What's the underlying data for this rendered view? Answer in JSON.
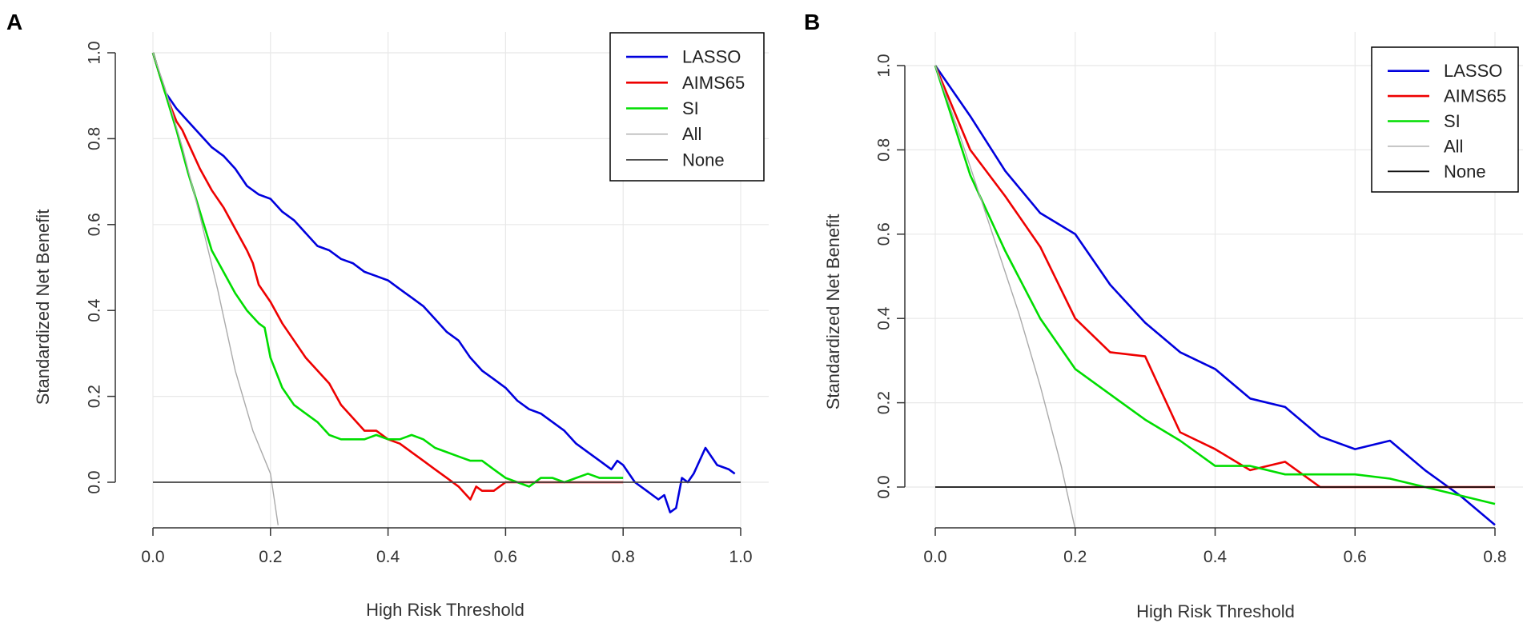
{
  "chart_data": [
    {
      "panel": "A",
      "type": "line",
      "title": "",
      "xlabel": "High Risk Threshold",
      "ylabel": "Standardized Net Benefit",
      "xlim": [
        0,
        1
      ],
      "ylim": [
        -0.1,
        1.0
      ],
      "xticks": [
        "0.0",
        "0.2",
        "0.4",
        "0.6",
        "0.8",
        "1.0"
      ],
      "yticks": [
        "0.0",
        "0.2",
        "0.4",
        "0.6",
        "0.8",
        "1.0"
      ],
      "grid": true,
      "legend_position": "top-right",
      "series": [
        {
          "name": "LASSO",
          "color": "#0000dd",
          "x": [
            0,
            0.02,
            0.04,
            0.06,
            0.08,
            0.1,
            0.12,
            0.14,
            0.16,
            0.18,
            0.2,
            0.22,
            0.24,
            0.26,
            0.28,
            0.3,
            0.32,
            0.34,
            0.36,
            0.38,
            0.4,
            0.42,
            0.44,
            0.46,
            0.48,
            0.5,
            0.52,
            0.54,
            0.56,
            0.58,
            0.6,
            0.62,
            0.64,
            0.66,
            0.68,
            0.7,
            0.72,
            0.74,
            0.76,
            0.78,
            0.79,
            0.8,
            0.82,
            0.84,
            0.86,
            0.87,
            0.88,
            0.89,
            0.9,
            0.91,
            0.92,
            0.94,
            0.96,
            0.98,
            0.99
          ],
          "y": [
            1.0,
            0.91,
            0.87,
            0.84,
            0.81,
            0.78,
            0.76,
            0.73,
            0.69,
            0.67,
            0.66,
            0.63,
            0.61,
            0.58,
            0.55,
            0.54,
            0.52,
            0.51,
            0.49,
            0.48,
            0.47,
            0.45,
            0.43,
            0.41,
            0.38,
            0.35,
            0.33,
            0.29,
            0.26,
            0.24,
            0.22,
            0.19,
            0.17,
            0.16,
            0.14,
            0.12,
            0.09,
            0.07,
            0.05,
            0.03,
            0.05,
            0.04,
            0.0,
            -0.02,
            -0.04,
            -0.03,
            -0.07,
            -0.06,
            0.01,
            0.0,
            0.02,
            0.08,
            0.04,
            0.03,
            0.02
          ]
        },
        {
          "name": "AIMS65",
          "color": "#ee0000",
          "x": [
            0,
            0.02,
            0.04,
            0.05,
            0.06,
            0.08,
            0.1,
            0.12,
            0.14,
            0.16,
            0.17,
            0.18,
            0.2,
            0.22,
            0.24,
            0.26,
            0.28,
            0.3,
            0.32,
            0.34,
            0.36,
            0.38,
            0.4,
            0.42,
            0.44,
            0.46,
            0.48,
            0.5,
            0.52,
            0.54,
            0.55,
            0.56,
            0.58,
            0.6,
            0.62,
            0.64,
            0.66,
            0.68,
            0.7,
            0.72,
            0.74,
            0.76,
            0.78,
            0.8
          ],
          "y": [
            1.0,
            0.91,
            0.84,
            0.82,
            0.79,
            0.73,
            0.68,
            0.64,
            0.59,
            0.54,
            0.51,
            0.46,
            0.42,
            0.37,
            0.33,
            0.29,
            0.26,
            0.23,
            0.18,
            0.15,
            0.12,
            0.12,
            0.1,
            0.09,
            0.07,
            0.05,
            0.03,
            0.01,
            -0.01,
            -0.04,
            -0.01,
            -0.02,
            -0.02,
            0.0,
            0.0,
            0.0,
            0.0,
            0.0,
            0.0,
            0.0,
            0.0,
            0.0,
            0.0,
            0.0
          ]
        },
        {
          "name": "SI",
          "color": "#00dd00",
          "x": [
            0,
            0.02,
            0.04,
            0.06,
            0.08,
            0.1,
            0.12,
            0.14,
            0.16,
            0.18,
            0.19,
            0.2,
            0.22,
            0.24,
            0.26,
            0.28,
            0.3,
            0.32,
            0.34,
            0.36,
            0.38,
            0.4,
            0.42,
            0.44,
            0.46,
            0.48,
            0.5,
            0.52,
            0.54,
            0.56,
            0.58,
            0.6,
            0.62,
            0.64,
            0.66,
            0.68,
            0.7,
            0.72,
            0.74,
            0.76,
            0.78,
            0.8
          ],
          "y": [
            1.0,
            0.91,
            0.82,
            0.72,
            0.63,
            0.54,
            0.49,
            0.44,
            0.4,
            0.37,
            0.36,
            0.29,
            0.22,
            0.18,
            0.16,
            0.14,
            0.11,
            0.1,
            0.1,
            0.1,
            0.11,
            0.1,
            0.1,
            0.11,
            0.1,
            0.08,
            0.07,
            0.06,
            0.05,
            0.05,
            0.03,
            0.01,
            0.0,
            -0.01,
            0.01,
            0.01,
            0.0,
            0.01,
            0.02,
            0.01,
            0.01,
            0.01
          ]
        },
        {
          "name": "All",
          "color": "#aaaaaa",
          "x": [
            0,
            0.02,
            0.05,
            0.08,
            0.11,
            0.14,
            0.17,
            0.2,
            0.213
          ],
          "y": [
            1.0,
            0.92,
            0.78,
            0.62,
            0.45,
            0.26,
            0.12,
            0.02,
            -0.1
          ]
        },
        {
          "name": "None",
          "color": "#444444",
          "x": [
            0,
            1.0
          ],
          "y": [
            0,
            0
          ]
        }
      ]
    },
    {
      "panel": "B",
      "type": "line",
      "title": "",
      "xlabel": "High Risk Threshold",
      "ylabel": "Standardized Net Benefit",
      "xlim": [
        0,
        0.8
      ],
      "ylim": [
        -0.1,
        1.0
      ],
      "xticks": [
        "0.0",
        "0.2",
        "0.4",
        "0.6",
        "0.8"
      ],
      "yticks": [
        "0.0",
        "0.2",
        "0.4",
        "0.6",
        "0.8",
        "1.0"
      ],
      "grid": true,
      "legend_position": "top-right",
      "series": [
        {
          "name": "LASSO",
          "color": "#0000dd",
          "x": [
            0,
            0.05,
            0.1,
            0.15,
            0.2,
            0.25,
            0.3,
            0.35,
            0.4,
            0.45,
            0.5,
            0.55,
            0.6,
            0.65,
            0.7,
            0.75,
            0.8
          ],
          "y": [
            1.0,
            0.88,
            0.75,
            0.65,
            0.6,
            0.48,
            0.39,
            0.32,
            0.28,
            0.21,
            0.19,
            0.12,
            0.09,
            0.11,
            0.04,
            -0.02,
            -0.09
          ]
        },
        {
          "name": "AIMS65",
          "color": "#ee0000",
          "x": [
            0,
            0.05,
            0.1,
            0.15,
            0.2,
            0.25,
            0.3,
            0.35,
            0.4,
            0.45,
            0.5,
            0.55,
            0.6,
            0.65,
            0.7,
            0.75,
            0.8
          ],
          "y": [
            1.0,
            0.8,
            0.69,
            0.57,
            0.4,
            0.32,
            0.31,
            0.13,
            0.09,
            0.04,
            0.06,
            0.0,
            0.0,
            0.0,
            0.0,
            0.0,
            0.0
          ]
        },
        {
          "name": "SI",
          "color": "#00dd00",
          "x": [
            0,
            0.05,
            0.1,
            0.15,
            0.2,
            0.25,
            0.3,
            0.35,
            0.4,
            0.45,
            0.5,
            0.55,
            0.6,
            0.65,
            0.7,
            0.75,
            0.8
          ],
          "y": [
            1.0,
            0.74,
            0.56,
            0.4,
            0.28,
            0.22,
            0.16,
            0.11,
            0.05,
            0.05,
            0.03,
            0.03,
            0.03,
            0.02,
            0.0,
            -0.02,
            -0.04
          ]
        },
        {
          "name": "All",
          "color": "#aaaaaa",
          "x": [
            0,
            0.03,
            0.06,
            0.09,
            0.12,
            0.15,
            0.18,
            0.2
          ],
          "y": [
            1.0,
            0.86,
            0.71,
            0.56,
            0.41,
            0.24,
            0.05,
            -0.1
          ]
        },
        {
          "name": "None",
          "color": "#111111",
          "x": [
            0,
            0.8
          ],
          "y": [
            0,
            0
          ]
        }
      ]
    }
  ]
}
